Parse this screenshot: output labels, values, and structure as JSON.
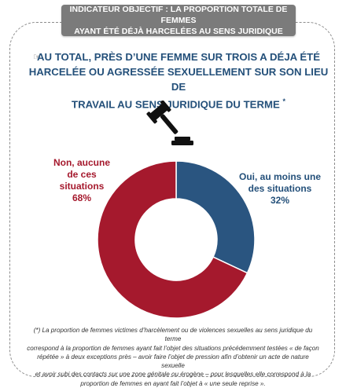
{
  "header": {
    "line1": "INDICATEUR OBJECTIF : LA PROPORTION TOTALE DE FEMMES",
    "line2": "AYANT ÉTÉ DÉJÀ HARCELÉES AU SENS JURIDIQUE"
  },
  "headline": {
    "bullet_icon": "pointing-hand-icon",
    "line1": "AU TOTAL, PRÈS D’UNE FEMME SUR TROIS A DÉJA ÉTÉ",
    "line2": "HARCELÉE OU AGRESSÉE SEXUELLEMENT SUR SON LIEU DE",
    "line3": "TRAVAIL AU SENS JURIDIQUE DU TERME",
    "star": "*"
  },
  "icon": "gavel-icon",
  "chart_data": {
    "type": "pie",
    "style": "donut",
    "slices": [
      {
        "label": "Oui, au moins une des situations",
        "value": 32,
        "value_label": "32%",
        "color": "#2a5580"
      },
      {
        "label": "Non, aucune de ces situations",
        "value": 68,
        "value_label": "68%",
        "color": "#a5192d"
      }
    ],
    "labels_lines": {
      "oui": [
        "Oui, au moins une",
        "des situations",
        "32%"
      ],
      "non": [
        "Non, aucune",
        "de ces",
        "situations",
        "68%"
      ]
    }
  },
  "footnote": {
    "line1": "(*) La proportion de femmes victimes d’harcèlement ou de violences sexuelles au sens juridique du terme",
    "line2": "correspond à la proportion de femmes ayant fait l’objet des situations précédemment testées « de façon",
    "line3": "répétée » à deux exceptions près – avoir faire l’objet de pression afin d’obtenir un acte de nature sexuelle",
    "line4": "et avoir subi des contacts sur une zone génitale ou érogène – pour lesquelles elle correspond à la",
    "line5": "proportion de femmes en ayant fait l’objet à « une seule reprise »."
  }
}
